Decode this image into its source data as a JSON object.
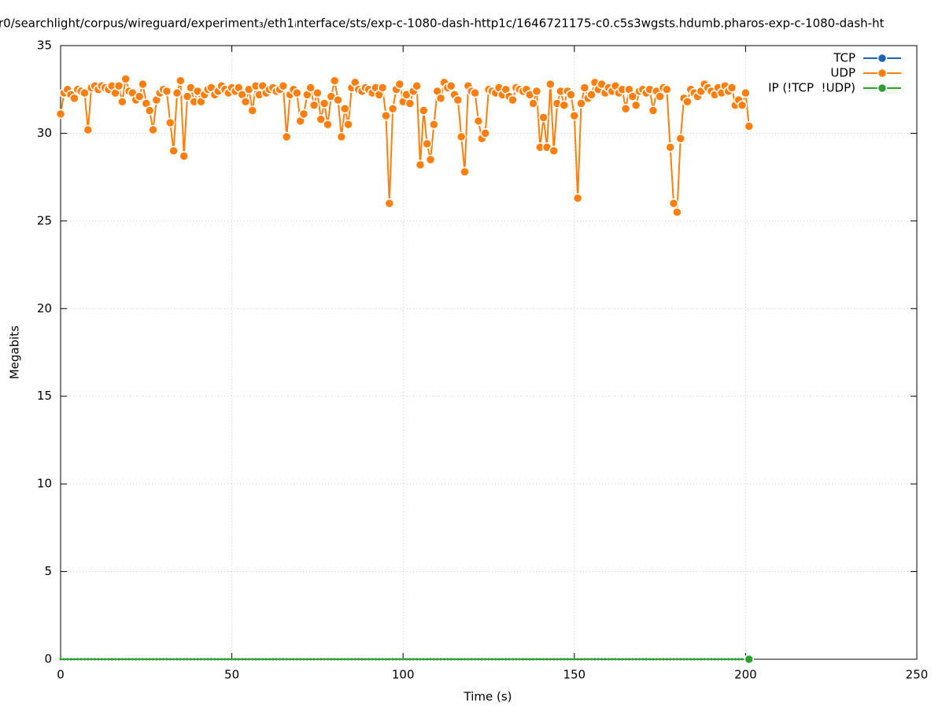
{
  "chart_data": {
    "type": "line",
    "title": "r0/searchlight/corpus/wireguard/experiment₃/eth1ᵢnterface/sts/exp-c-1080-dash-http1c/1646721175-c0.c5s3wgsts.hdumb.pharos-exp-c-1080-dash-ht",
    "x_label": "Time (s)",
    "y_label": "Megabits",
    "xlim": [
      0,
      250
    ],
    "xticks": [
      0,
      50,
      100,
      150,
      200,
      250
    ],
    "ylim": [
      0,
      35
    ],
    "yticks": [
      0,
      5,
      10,
      15,
      20,
      25,
      30,
      35
    ],
    "grid": true,
    "legend": "top-right",
    "x": [
      0,
      1,
      2,
      3,
      4,
      5,
      6,
      7,
      8,
      9,
      10,
      11,
      12,
      13,
      14,
      15,
      16,
      17,
      18,
      19,
      20,
      21,
      22,
      23,
      24,
      25,
      26,
      27,
      28,
      29,
      30,
      31,
      32,
      33,
      34,
      35,
      36,
      37,
      38,
      39,
      40,
      41,
      42,
      43,
      44,
      45,
      46,
      47,
      48,
      49,
      50,
      51,
      52,
      53,
      54,
      55,
      56,
      57,
      58,
      59,
      60,
      61,
      62,
      63,
      64,
      65,
      66,
      67,
      68,
      69,
      70,
      71,
      72,
      73,
      74,
      75,
      76,
      77,
      78,
      79,
      80,
      81,
      82,
      83,
      84,
      85,
      86,
      87,
      88,
      89,
      90,
      91,
      92,
      93,
      94,
      95,
      96,
      97,
      98,
      99,
      100,
      101,
      102,
      103,
      104,
      105,
      106,
      107,
      108,
      109,
      110,
      111,
      112,
      113,
      114,
      115,
      116,
      117,
      118,
      119,
      120,
      121,
      122,
      123,
      124,
      125,
      126,
      127,
      128,
      129,
      130,
      131,
      132,
      133,
      134,
      135,
      136,
      137,
      138,
      139,
      140,
      141,
      142,
      143,
      144,
      145,
      146,
      147,
      148,
      149,
      150,
      151,
      152,
      153,
      154,
      155,
      156,
      157,
      158,
      159,
      160,
      161,
      162,
      163,
      164,
      165,
      166,
      167,
      168,
      169,
      170,
      171,
      172,
      173,
      174,
      175,
      176,
      177,
      178,
      179,
      180,
      181,
      182,
      183,
      184,
      185,
      186,
      187,
      188,
      189,
      190,
      191,
      192,
      193,
      194,
      195,
      196,
      197,
      198,
      199,
      200,
      201
    ],
    "series": [
      {
        "name": "TCP",
        "color": "#1f63b4",
        "values": [
          0,
          0,
          0,
          0,
          0,
          0,
          0,
          0,
          0,
          0,
          0,
          0,
          0,
          0,
          0,
          0,
          0,
          0,
          0,
          0,
          0,
          0,
          0,
          0,
          0,
          0,
          0,
          0,
          0,
          0,
          0,
          0,
          0,
          0,
          0,
          0,
          0,
          0,
          0,
          0,
          0,
          0,
          0,
          0,
          0,
          0,
          0,
          0,
          0,
          0,
          0,
          0,
          0,
          0,
          0,
          0,
          0,
          0,
          0,
          0,
          0,
          0,
          0,
          0,
          0,
          0,
          0,
          0,
          0,
          0,
          0,
          0,
          0,
          0,
          0,
          0,
          0,
          0,
          0,
          0,
          0,
          0,
          0,
          0,
          0,
          0,
          0,
          0,
          0,
          0,
          0,
          0,
          0,
          0,
          0,
          0,
          0,
          0,
          0,
          0,
          0,
          0,
          0,
          0,
          0,
          0,
          0,
          0,
          0,
          0,
          0,
          0,
          0,
          0,
          0,
          0,
          0,
          0,
          0,
          0,
          0,
          0,
          0,
          0,
          0,
          0,
          0,
          0,
          0,
          0,
          0,
          0,
          0,
          0,
          0,
          0,
          0,
          0,
          0,
          0,
          0,
          0,
          0,
          0,
          0,
          0,
          0,
          0,
          0,
          0,
          0,
          0,
          0,
          0,
          0,
          0,
          0,
          0,
          0,
          0,
          0,
          0,
          0,
          0,
          0,
          0,
          0,
          0,
          0,
          0,
          0,
          0,
          0,
          0,
          0,
          0,
          0,
          0,
          0,
          0,
          0,
          0,
          0,
          0,
          0,
          0,
          0,
          0,
          0,
          0,
          0,
          0,
          0,
          0,
          0,
          0,
          0,
          0,
          0,
          0,
          0,
          0
        ]
      },
      {
        "name": "UDP",
        "color": "#ff7f0e",
        "values": [
          31.1,
          32.3,
          32.5,
          32.2,
          32.0,
          32.5,
          32.4,
          32.3,
          30.2,
          32.6,
          32.7,
          32.5,
          32.7,
          32.6,
          32.5,
          32.7,
          32.3,
          32.7,
          31.8,
          33.1,
          32.4,
          32.3,
          31.9,
          32.1,
          32.8,
          31.7,
          31.3,
          30.2,
          31.9,
          32.3,
          32.5,
          32.4,
          30.6,
          29.0,
          32.3,
          33.0,
          28.7,
          32.1,
          32.6,
          31.8,
          32.4,
          31.8,
          32.2,
          32.5,
          32.6,
          32.2,
          32.4,
          32.7,
          32.5,
          32.3,
          32.6,
          32.4,
          32.6,
          32.2,
          31.8,
          32.5,
          31.3,
          32.7,
          32.2,
          32.7,
          32.3,
          32.5,
          32.6,
          32.4,
          32.5,
          32.7,
          29.8,
          32.2,
          32.5,
          32.3,
          30.7,
          31.1,
          32.2,
          32.6,
          31.6,
          32.3,
          30.8,
          31.7,
          30.5,
          32.1,
          33.0,
          31.9,
          29.8,
          31.4,
          30.5,
          32.6,
          32.9,
          32.5,
          32.4,
          32.6,
          32.5,
          32.3,
          32.6,
          32.2,
          32.6,
          31.0,
          26.0,
          31.4,
          32.5,
          32.8,
          31.8,
          32.2,
          31.7,
          32.4,
          32.7,
          28.2,
          31.3,
          29.4,
          28.5,
          30.5,
          32.4,
          32.0,
          32.9,
          32.6,
          32.7,
          32.2,
          31.9,
          29.8,
          27.8,
          32.7,
          32.4,
          32.3,
          30.7,
          29.7,
          30.0,
          32.5,
          32.4,
          32.3,
          32.6,
          32.2,
          32.5,
          32.1,
          31.9,
          32.6,
          32.5,
          32.4,
          32.5,
          32.2,
          31.7,
          32.4,
          29.2,
          30.9,
          29.2,
          32.8,
          29.0,
          31.7,
          32.4,
          31.6,
          32.4,
          32.2,
          31.0,
          26.3,
          31.7,
          32.6,
          32.0,
          32.2,
          32.9,
          32.5,
          32.8,
          32.3,
          32.6,
          32.4,
          32.7,
          32.3,
          32.5,
          31.4,
          32.5,
          32.1,
          31.6,
          32.4,
          32.5,
          32.3,
          32.5,
          31.3,
          32.4,
          32.1,
          32.6,
          32.5,
          29.2,
          26.0,
          25.5,
          29.7,
          32.0,
          31.8,
          32.5,
          32.3,
          32.1,
          32.4,
          32.8,
          32.6,
          32.4,
          32.2,
          32.6,
          32.3,
          32.7,
          32.4,
          32.6,
          31.6,
          31.9,
          31.6,
          32.3,
          30.4
        ]
      },
      {
        "name": "IP (!TCP  !UDP)",
        "color": "#2ca02c",
        "values": [
          0,
          0,
          0,
          0,
          0,
          0,
          0,
          0,
          0,
          0,
          0,
          0,
          0,
          0,
          0,
          0,
          0,
          0,
          0,
          0,
          0,
          0,
          0,
          0,
          0,
          0,
          0,
          0,
          0,
          0,
          0,
          0,
          0,
          0,
          0,
          0,
          0,
          0,
          0,
          0,
          0,
          0,
          0,
          0,
          0,
          0,
          0,
          0,
          0,
          0,
          0,
          0,
          0,
          0,
          0,
          0,
          0,
          0,
          0,
          0,
          0,
          0,
          0,
          0,
          0,
          0,
          0,
          0,
          0,
          0,
          0,
          0,
          0,
          0,
          0,
          0,
          0,
          0,
          0,
          0,
          0,
          0,
          0,
          0,
          0,
          0,
          0,
          0,
          0,
          0,
          0,
          0,
          0,
          0,
          0,
          0,
          0,
          0,
          0,
          0,
          0,
          0,
          0,
          0,
          0,
          0,
          0,
          0,
          0,
          0,
          0,
          0,
          0,
          0,
          0,
          0,
          0,
          0,
          0,
          0,
          0,
          0,
          0,
          0,
          0,
          0,
          0,
          0,
          0,
          0,
          0,
          0,
          0,
          0,
          0,
          0,
          0,
          0,
          0,
          0,
          0,
          0,
          0,
          0,
          0,
          0,
          0,
          0,
          0,
          0,
          0,
          0,
          0,
          0,
          0,
          0,
          0,
          0,
          0,
          0,
          0,
          0,
          0,
          0,
          0,
          0,
          0,
          0,
          0,
          0,
          0,
          0,
          0,
          0,
          0,
          0,
          0,
          0,
          0,
          0,
          0,
          0,
          0,
          0,
          0,
          0,
          0,
          0,
          0,
          0,
          0,
          0,
          0,
          0,
          0,
          0,
          0,
          0,
          0,
          0,
          0,
          0
        ]
      }
    ]
  }
}
